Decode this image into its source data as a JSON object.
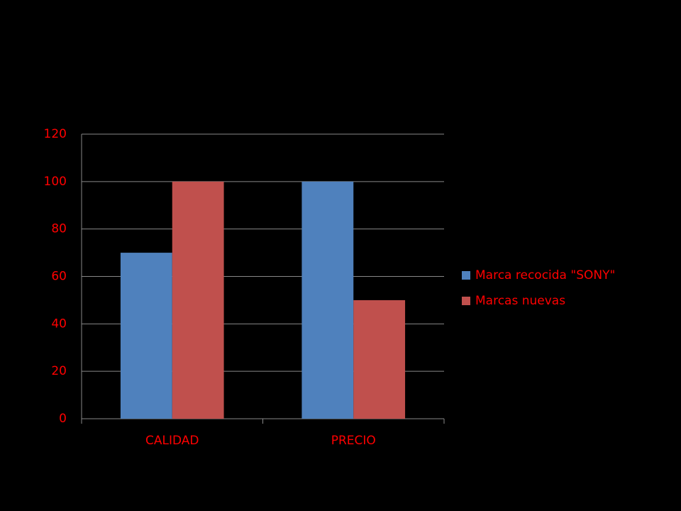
{
  "chart_data": {
    "type": "bar",
    "categories": [
      "CALIDAD",
      "PRECIO"
    ],
    "series": [
      {
        "name": "Marca recocida \"SONY\"",
        "color": "#4f81bd",
        "values": [
          70,
          100
        ]
      },
      {
        "name": "Marcas nuevas",
        "color": "#c0504d",
        "values": [
          100,
          50
        ]
      }
    ],
    "ylim": [
      0,
      120
    ],
    "yticks": [
      0,
      20,
      40,
      60,
      80,
      100,
      120
    ],
    "grid": true,
    "legend": "right"
  }
}
